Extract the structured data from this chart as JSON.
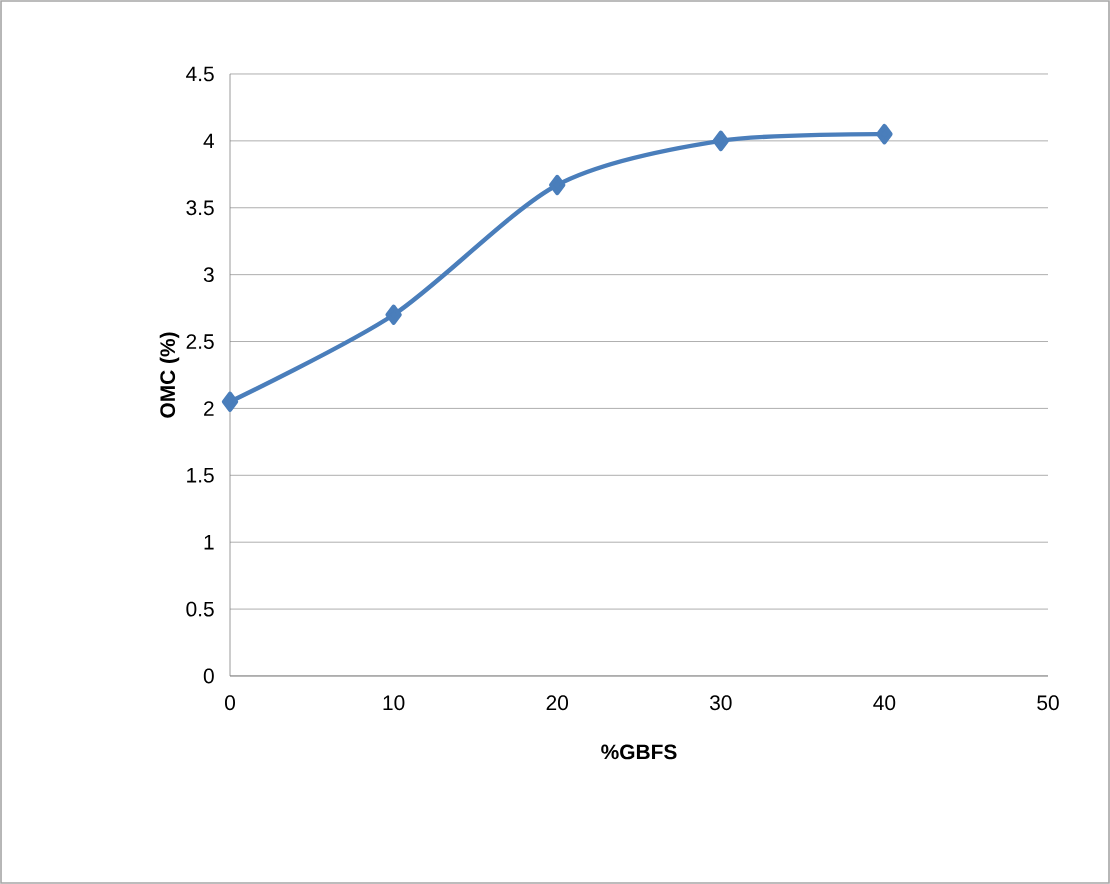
{
  "chart_data": {
    "type": "line",
    "xlabel": "%GBFS",
    "ylabel": "OMC (%)",
    "x": [
      0,
      10,
      20,
      30,
      40
    ],
    "series": [
      {
        "color": "#4a7ebb",
        "values": [
          2.05,
          2.7,
          3.67,
          4.0,
          4.05
        ]
      }
    ],
    "xlim": [
      0,
      50
    ],
    "xticks": [
      0,
      10,
      20,
      30,
      40,
      50
    ],
    "ylim": [
      0,
      4.5
    ],
    "yticks": [
      0,
      0.5,
      1,
      1.5,
      2,
      2.5,
      3,
      3.5,
      4,
      4.5
    ],
    "grid": "y",
    "marker": "diamond",
    "line_style": "solid"
  }
}
